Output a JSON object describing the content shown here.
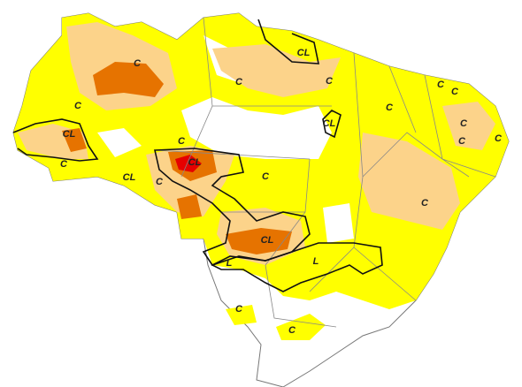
{
  "map": {
    "labels": [
      "C",
      "C",
      "CL",
      "C",
      "CL",
      "C",
      "C",
      "CL",
      "C",
      "C",
      "C",
      "C",
      "C",
      "C",
      "C",
      "CL",
      "CL",
      "C",
      "C",
      "CL",
      "C",
      "L",
      "L",
      "C",
      "C"
    ]
  }
}
